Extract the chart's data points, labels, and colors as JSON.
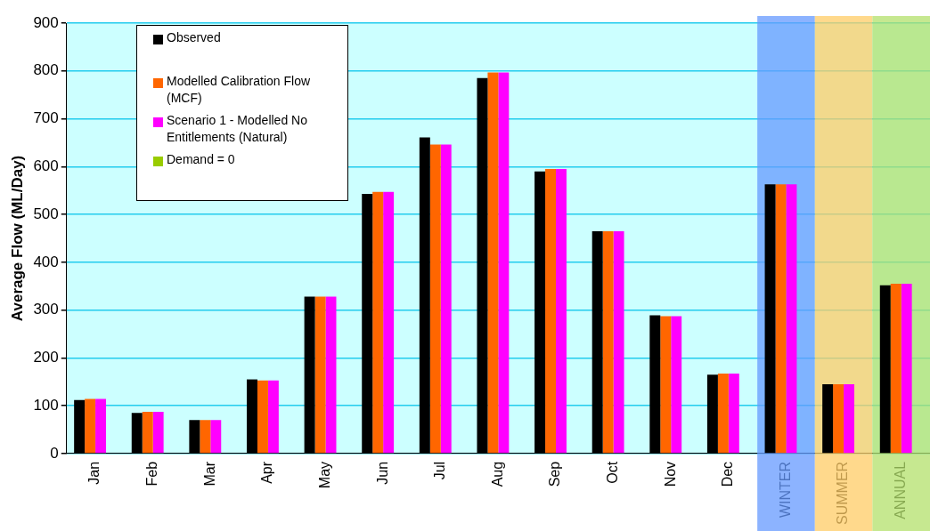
{
  "chart_data": {
    "type": "bar",
    "ylabel": "Average Flow (ML/Day)",
    "categories": [
      "Jan",
      "Feb",
      "Mar",
      "Apr",
      "May",
      "Jun",
      "Jul",
      "Aug",
      "Sep",
      "Oct",
      "Nov",
      "Dec",
      "WINTER",
      "SUMMER",
      "ANNUAL"
    ],
    "series": [
      {
        "name": "Observed",
        "color": "#000000",
        "values": [
          112,
          85,
          70,
          155,
          328,
          543,
          661,
          785,
          590,
          465,
          289,
          165,
          563,
          145,
          352
        ]
      },
      {
        "name": "Modelled Calibration Flow (MCF)",
        "color": "#ff6600",
        "values": [
          114,
          87,
          70,
          153,
          328,
          547,
          646,
          797,
          595,
          465,
          287,
          167,
          563,
          145,
          355
        ]
      },
      {
        "name": "Scenario 1 - Modelled No Entitlements (Natural)",
        "color": "#ff00ff",
        "values": [
          114,
          87,
          70,
          153,
          328,
          547,
          646,
          797,
          595,
          465,
          287,
          167,
          563,
          145,
          355
        ]
      },
      {
        "name": "Demand = 0",
        "color": "#99cc00",
        "values": [
          0,
          0,
          0,
          0,
          0,
          0,
          0,
          0,
          0,
          0,
          0,
          0,
          0,
          0,
          0
        ]
      }
    ],
    "ylim": [
      0,
      900
    ],
    "yticks": [
      0,
      100,
      200,
      300,
      400,
      500,
      600,
      700,
      800,
      900
    ],
    "grid": "y",
    "legend": "top left",
    "bands": [
      {
        "axis": "x",
        "from": "WINTER",
        "to": "WINTER",
        "color": "#6699ff"
      },
      {
        "axis": "x",
        "from": "SUMMER",
        "to": "SUMMER",
        "color": "#ffcc66"
      },
      {
        "axis": "x",
        "from": "ANNUAL",
        "to": "ANNUAL",
        "color": "#b3e06b"
      }
    ]
  }
}
